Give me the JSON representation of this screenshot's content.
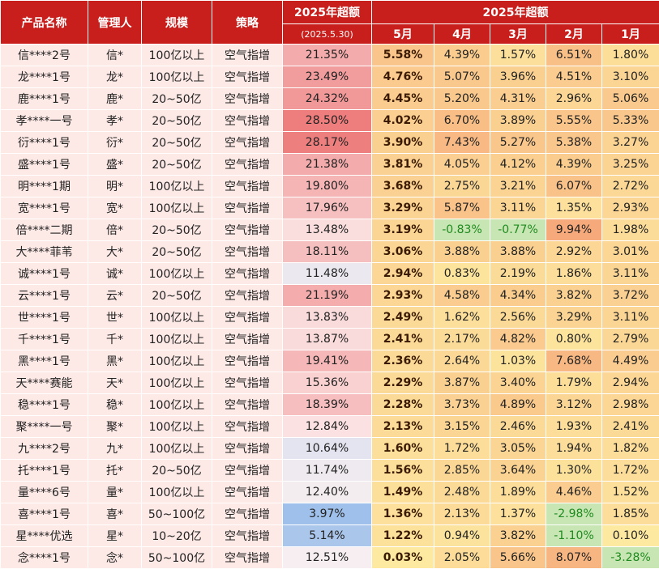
{
  "header": {
    "col_name": "产品名称",
    "col_manager": "管理人",
    "col_scale": "规模",
    "col_strategy": "策略",
    "col_ytd": "2025年超额",
    "col_ytd_date": "(2025.5.30)",
    "col_monthly_group": "2025年超额",
    "months": [
      "5月",
      "4月",
      "3月",
      "2月",
      "1月"
    ]
  },
  "rows": [
    {
      "name": "信****2号",
      "manager": "信*",
      "scale": "100亿以上",
      "strategy": "空气指增",
      "ytd": "21.35%",
      "may": "5.58%",
      "apr": "4.39%",
      "mar": "1.57%",
      "feb": "6.51%",
      "jan": "1.80%"
    },
    {
      "name": "龙****1号",
      "manager": "龙*",
      "scale": "100亿以上",
      "strategy": "空气指增",
      "ytd": "23.49%",
      "may": "4.76%",
      "apr": "5.07%",
      "mar": "3.96%",
      "feb": "4.51%",
      "jan": "3.10%"
    },
    {
      "name": "鹿****1号",
      "manager": "鹿*",
      "scale": "20~50亿",
      "strategy": "空气指增",
      "ytd": "24.32%",
      "may": "4.45%",
      "apr": "5.20%",
      "mar": "4.31%",
      "feb": "2.96%",
      "jan": "5.06%"
    },
    {
      "name": "孝****一号",
      "manager": "孝*",
      "scale": "20~50亿",
      "strategy": "空气指增",
      "ytd": "28.50%",
      "may": "4.02%",
      "apr": "6.70%",
      "mar": "3.89%",
      "feb": "5.55%",
      "jan": "5.33%"
    },
    {
      "name": "衍****1号",
      "manager": "衍*",
      "scale": "20~50亿",
      "strategy": "空气指增",
      "ytd": "28.17%",
      "may": "3.90%",
      "apr": "7.43%",
      "mar": "5.27%",
      "feb": "5.38%",
      "jan": "3.27%"
    },
    {
      "name": "盛****1号",
      "manager": "盛*",
      "scale": "20~50亿",
      "strategy": "空气指增",
      "ytd": "21.38%",
      "may": "3.81%",
      "apr": "4.05%",
      "mar": "4.12%",
      "feb": "4.39%",
      "jan": "3.25%"
    },
    {
      "name": "明****1期",
      "manager": "明*",
      "scale": "100亿以上",
      "strategy": "空气指增",
      "ytd": "19.80%",
      "may": "3.68%",
      "apr": "2.75%",
      "mar": "3.21%",
      "feb": "6.07%",
      "jan": "2.72%"
    },
    {
      "name": "宽****1号",
      "manager": "宽*",
      "scale": "100亿以上",
      "strategy": "空气指增",
      "ytd": "17.96%",
      "may": "3.29%",
      "apr": "5.87%",
      "mar": "3.11%",
      "feb": "1.35%",
      "jan": "2.93%"
    },
    {
      "name": "倍****二期",
      "manager": "倍*",
      "scale": "20~50亿",
      "strategy": "空气指增",
      "ytd": "13.48%",
      "may": "3.19%",
      "apr": "-0.83%",
      "mar": "-0.77%",
      "feb": "9.94%",
      "jan": "1.98%"
    },
    {
      "name": "大****菲苇",
      "manager": "大*",
      "scale": "20~50亿",
      "strategy": "空气指增",
      "ytd": "18.11%",
      "may": "3.06%",
      "apr": "3.88%",
      "mar": "3.88%",
      "feb": "2.92%",
      "jan": "3.01%"
    },
    {
      "name": "诚****1号",
      "manager": "诚*",
      "scale": "100亿以上",
      "strategy": "空气指增",
      "ytd": "11.48%",
      "may": "2.94%",
      "apr": "0.83%",
      "mar": "2.19%",
      "feb": "1.86%",
      "jan": "3.11%"
    },
    {
      "name": "云****1号",
      "manager": "云*",
      "scale": "20~50亿",
      "strategy": "空气指增",
      "ytd": "21.19%",
      "may": "2.93%",
      "apr": "4.58%",
      "mar": "4.34%",
      "feb": "3.82%",
      "jan": "3.72%"
    },
    {
      "name": "世****1号",
      "manager": "世*",
      "scale": "100亿以上",
      "strategy": "空气指增",
      "ytd": "13.83%",
      "may": "2.49%",
      "apr": "1.62%",
      "mar": "2.56%",
      "feb": "3.29%",
      "jan": "3.11%"
    },
    {
      "name": "千****1号",
      "manager": "千*",
      "scale": "100亿以上",
      "strategy": "空气指增",
      "ytd": "13.87%",
      "may": "2.41%",
      "apr": "2.17%",
      "mar": "4.82%",
      "feb": "0.80%",
      "jan": "2.79%"
    },
    {
      "name": "黑****1号",
      "manager": "黑*",
      "scale": "100亿以上",
      "strategy": "空气指增",
      "ytd": "19.41%",
      "may": "2.36%",
      "apr": "2.64%",
      "mar": "1.03%",
      "feb": "7.68%",
      "jan": "4.49%"
    },
    {
      "name": "天****赛能",
      "manager": "天*",
      "scale": "100亿以上",
      "strategy": "空气指增",
      "ytd": "15.36%",
      "may": "2.29%",
      "apr": "3.87%",
      "mar": "3.40%",
      "feb": "1.79%",
      "jan": "2.94%"
    },
    {
      "name": "稳****1号",
      "manager": "稳*",
      "scale": "100亿以上",
      "strategy": "空气指增",
      "ytd": "18.39%",
      "may": "2.28%",
      "apr": "3.73%",
      "mar": "4.89%",
      "feb": "3.12%",
      "jan": "2.98%"
    },
    {
      "name": "聚****一号",
      "manager": "聚*",
      "scale": "100亿以上",
      "strategy": "空气指增",
      "ytd": "12.84%",
      "may": "2.13%",
      "apr": "3.15%",
      "mar": "2.46%",
      "feb": "1.93%",
      "jan": "2.41%"
    },
    {
      "name": "九****2号",
      "manager": "九*",
      "scale": "100亿以上",
      "strategy": "空气指增",
      "ytd": "10.64%",
      "may": "1.60%",
      "apr": "1.72%",
      "mar": "3.05%",
      "feb": "1.94%",
      "jan": "1.82%"
    },
    {
      "name": "托****1号",
      "manager": "托*",
      "scale": "20~50亿",
      "strategy": "空气指增",
      "ytd": "11.74%",
      "may": "1.56%",
      "apr": "2.85%",
      "mar": "3.64%",
      "feb": "1.30%",
      "jan": "1.72%"
    },
    {
      "name": "量****6号",
      "manager": "量*",
      "scale": "100亿以上",
      "strategy": "空气指增",
      "ytd": "12.40%",
      "may": "1.49%",
      "apr": "2.48%",
      "mar": "1.89%",
      "feb": "4.46%",
      "jan": "1.52%"
    },
    {
      "name": "喜****1号",
      "manager": "喜*",
      "scale": "50~100亿",
      "strategy": "空气指增",
      "ytd": "3.97%",
      "may": "1.36%",
      "apr": "2.13%",
      "mar": "1.37%",
      "feb": "-2.98%",
      "jan": "1.85%"
    },
    {
      "name": "星****优选",
      "manager": "星*",
      "scale": "10~20亿",
      "strategy": "空气指增",
      "ytd": "5.14%",
      "may": "1.22%",
      "apr": "0.94%",
      "mar": "3.82%",
      "feb": "-1.10%",
      "jan": "0.10%"
    },
    {
      "name": "念****1号",
      "manager": "念*",
      "scale": "50~100亿",
      "strategy": "空气指增",
      "ytd": "12.51%",
      "may": "0.03%",
      "apr": "2.05%",
      "mar": "5.66%",
      "feb": "8.07%",
      "jan": "-3.28%"
    }
  ],
  "colors": {
    "header_bg": "#c81f1c",
    "header_text": "#ffffff",
    "info_bg": "#fde9e6",
    "positive_scale": [
      "#fde9a0",
      "#f6a97a"
    ],
    "negative_cell": "#c8e6b4",
    "ytd_low": "#9fc0ea",
    "ytd_high": "#ee7d7d",
    "negative_text": "#1f8a1f"
  }
}
